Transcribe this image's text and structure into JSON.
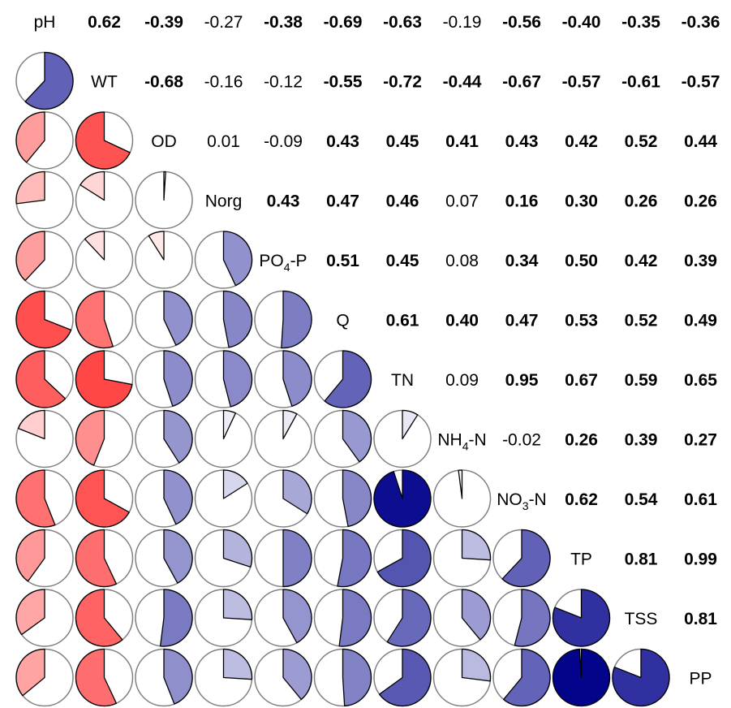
{
  "chart_data": {
    "type": "heatmap",
    "title": "",
    "variables": [
      "pH",
      "WT",
      "OD",
      "Norg",
      "PO4-P",
      "Q",
      "TN",
      "NH4-N",
      "NO3-N",
      "TP",
      "TSS",
      "PP"
    ],
    "variable_labels": [
      {
        "main": "pH",
        "sub": "",
        "tail": ""
      },
      {
        "main": "WT",
        "sub": "",
        "tail": ""
      },
      {
        "main": "OD",
        "sub": "",
        "tail": ""
      },
      {
        "main": "Norg",
        "sub": "",
        "tail": ""
      },
      {
        "main": "PO",
        "sub": "4",
        "tail": "-P"
      },
      {
        "main": "Q",
        "sub": "",
        "tail": ""
      },
      {
        "main": "TN",
        "sub": "",
        "tail": ""
      },
      {
        "main": "NH",
        "sub": "4",
        "tail": "-N"
      },
      {
        "main": "NO",
        "sub": "3",
        "tail": "-N"
      },
      {
        "main": "TP",
        "sub": "",
        "tail": ""
      },
      {
        "main": "TSS",
        "sub": "",
        "tail": ""
      },
      {
        "main": "PP",
        "sub": "",
        "tail": ""
      }
    ],
    "upper_triangle": "numbers",
    "lower_triangle": "pie",
    "color_negative": "#e8383d",
    "color_positive": "#1d2fb8",
    "color_scale": {
      "-1": "#ff0000",
      "0": "#ffffff",
      "1": "#00008b"
    },
    "matrix": [
      [
        1.0,
        0.62,
        -0.39,
        -0.27,
        -0.38,
        -0.69,
        -0.63,
        -0.19,
        -0.56,
        -0.4,
        -0.35,
        -0.36
      ],
      [
        0.62,
        1.0,
        -0.68,
        -0.16,
        -0.12,
        -0.55,
        -0.72,
        -0.44,
        -0.67,
        -0.57,
        -0.61,
        -0.57
      ],
      [
        -0.39,
        -0.68,
        1.0,
        0.01,
        -0.09,
        0.43,
        0.45,
        0.41,
        0.43,
        0.42,
        0.52,
        0.44
      ],
      [
        -0.27,
        -0.16,
        0.01,
        1.0,
        0.43,
        0.47,
        0.46,
        0.07,
        0.16,
        0.3,
        0.26,
        0.26
      ],
      [
        -0.38,
        -0.12,
        -0.09,
        0.43,
        1.0,
        0.51,
        0.45,
        0.08,
        0.34,
        0.5,
        0.42,
        0.39
      ],
      [
        -0.69,
        -0.55,
        0.43,
        0.47,
        0.51,
        1.0,
        0.61,
        0.4,
        0.47,
        0.53,
        0.52,
        0.49
      ],
      [
        -0.63,
        -0.72,
        0.45,
        0.46,
        0.45,
        0.61,
        1.0,
        0.09,
        0.95,
        0.67,
        0.59,
        0.65
      ],
      [
        -0.19,
        -0.44,
        0.41,
        0.07,
        0.08,
        0.4,
        0.09,
        1.0,
        -0.02,
        0.26,
        0.39,
        0.27
      ],
      [
        -0.56,
        -0.67,
        0.43,
        0.16,
        0.34,
        0.47,
        0.95,
        -0.02,
        1.0,
        0.62,
        0.54,
        0.61
      ],
      [
        -0.4,
        -0.57,
        0.42,
        0.3,
        0.5,
        0.53,
        0.67,
        0.26,
        0.62,
        1.0,
        0.81,
        0.99
      ],
      [
        -0.35,
        -0.61,
        0.52,
        0.26,
        0.42,
        0.52,
        0.59,
        0.39,
        0.54,
        0.81,
        1.0,
        0.81
      ],
      [
        -0.36,
        -0.57,
        0.44,
        0.26,
        0.39,
        0.49,
        0.65,
        0.27,
        0.61,
        0.99,
        0.81,
        1.0
      ]
    ],
    "upper_display": [
      [
        "",
        "0.62",
        "-0.39",
        "-0.27",
        "-0.38",
        "-0.69",
        "-0.63",
        "-0.19",
        "-0.56",
        "-0.40",
        "-0.35",
        "-0.36"
      ],
      [
        "",
        "",
        "-0.68",
        "-0.16",
        "-0.12",
        "-0.55",
        "-0.72",
        "-0.44",
        "-0.67",
        "-0.57",
        "-0.61",
        "-0.57"
      ],
      [
        "",
        "",
        "",
        "0.01",
        "-0.09",
        "0.43",
        "0.45",
        "0.41",
        "0.43",
        "0.42",
        "0.52",
        "0.44"
      ],
      [
        "",
        "",
        "",
        "",
        "0.43",
        "0.47",
        "0.46",
        "0.07",
        "0.16",
        "0.30",
        "0.26",
        "0.26"
      ],
      [
        "",
        "",
        "",
        "",
        "",
        "0.51",
        "0.45",
        "0.08",
        "0.34",
        "0.50",
        "0.42",
        "0.39"
      ],
      [
        "",
        "",
        "",
        "",
        "",
        "",
        "0.61",
        "0.40",
        "0.47",
        "0.53",
        "0.52",
        "0.49"
      ],
      [
        "",
        "",
        "",
        "",
        "",
        "",
        "",
        "0.09",
        "0.95",
        "0.67",
        "0.59",
        "0.65"
      ],
      [
        "",
        "",
        "",
        "",
        "",
        "",
        "",
        "",
        "-0.02",
        "0.26",
        "0.39",
        "0.27"
      ],
      [
        "",
        "",
        "",
        "",
        "",
        "",
        "",
        "",
        "",
        "0.62",
        "0.54",
        "0.61"
      ],
      [
        "",
        "",
        "",
        "",
        "",
        "",
        "",
        "",
        "",
        "",
        "0.81",
        "0.99"
      ],
      [
        "",
        "",
        "",
        "",
        "",
        "",
        "",
        "",
        "",
        "",
        "",
        "0.81"
      ],
      [
        "",
        "",
        "",
        "",
        "",
        "",
        "",
        "",
        "",
        "",
        "",
        ""
      ]
    ],
    "bold_cells": [
      [
        0,
        1
      ],
      [
        0,
        2
      ],
      [
        0,
        4
      ],
      [
        0,
        5
      ],
      [
        0,
        6
      ],
      [
        0,
        8
      ],
      [
        0,
        9
      ],
      [
        0,
        10
      ],
      [
        0,
        11
      ],
      [
        1,
        2
      ],
      [
        1,
        5
      ],
      [
        1,
        6
      ],
      [
        1,
        7
      ],
      [
        1,
        8
      ],
      [
        1,
        9
      ],
      [
        1,
        10
      ],
      [
        1,
        11
      ],
      [
        2,
        5
      ],
      [
        2,
        6
      ],
      [
        2,
        7
      ],
      [
        2,
        8
      ],
      [
        2,
        9
      ],
      [
        2,
        10
      ],
      [
        2,
        11
      ],
      [
        3,
        4
      ],
      [
        3,
        5
      ],
      [
        3,
        6
      ],
      [
        3,
        8
      ],
      [
        3,
        9
      ],
      [
        3,
        10
      ],
      [
        3,
        11
      ],
      [
        4,
        5
      ],
      [
        4,
        6
      ],
      [
        4,
        8
      ],
      [
        4,
        9
      ],
      [
        4,
        10
      ],
      [
        4,
        11
      ],
      [
        5,
        6
      ],
      [
        5,
        7
      ],
      [
        5,
        8
      ],
      [
        5,
        9
      ],
      [
        5,
        10
      ],
      [
        5,
        11
      ],
      [
        6,
        8
      ],
      [
        6,
        9
      ],
      [
        6,
        10
      ],
      [
        6,
        11
      ],
      [
        7,
        9
      ],
      [
        7,
        10
      ],
      [
        7,
        11
      ],
      [
        8,
        9
      ],
      [
        8,
        10
      ],
      [
        8,
        11
      ],
      [
        9,
        10
      ],
      [
        9,
        11
      ],
      [
        10,
        11
      ]
    ]
  }
}
